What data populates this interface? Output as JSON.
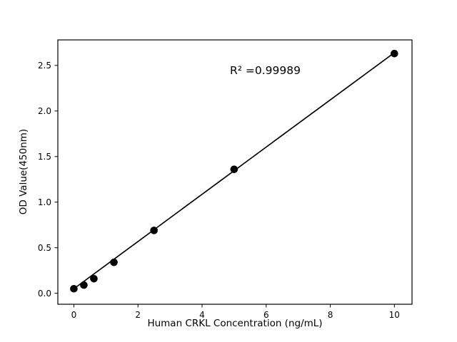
{
  "figure": {
    "background": "#ffffff",
    "foreground": "#000000"
  },
  "chart_data": {
    "type": "scatter",
    "title": "",
    "xlabel": "Human CRKL Concentration (ng/mL)",
    "ylabel": "OD Value(450nm)",
    "annotation": "R² =0.99989",
    "x": [
      0,
      0.3125,
      0.625,
      1.25,
      2.5,
      5,
      10
    ],
    "y": [
      0.05,
      0.09,
      0.16,
      0.34,
      0.69,
      1.36,
      2.63
    ],
    "trendline": {
      "x": [
        0,
        10
      ],
      "y": [
        0.05,
        2.64
      ]
    },
    "xlim": [
      -0.5,
      10.55
    ],
    "ylim": [
      -0.12,
      2.78
    ],
    "xticks": [
      0,
      2,
      4,
      6,
      8,
      10
    ],
    "xtick_labels": [
      "0",
      "2",
      "4",
      "6",
      "8",
      "10"
    ],
    "yticks": [
      0,
      0.5,
      1,
      1.5,
      2,
      2.5
    ],
    "ytick_labels": [
      "0.0",
      "0.5",
      "1.0",
      "1.5",
      "2.0",
      "2.5"
    ],
    "grid": false,
    "legend": null,
    "marker_color": "#000000",
    "line_color": "#000000",
    "axis_color": "#000000"
  }
}
